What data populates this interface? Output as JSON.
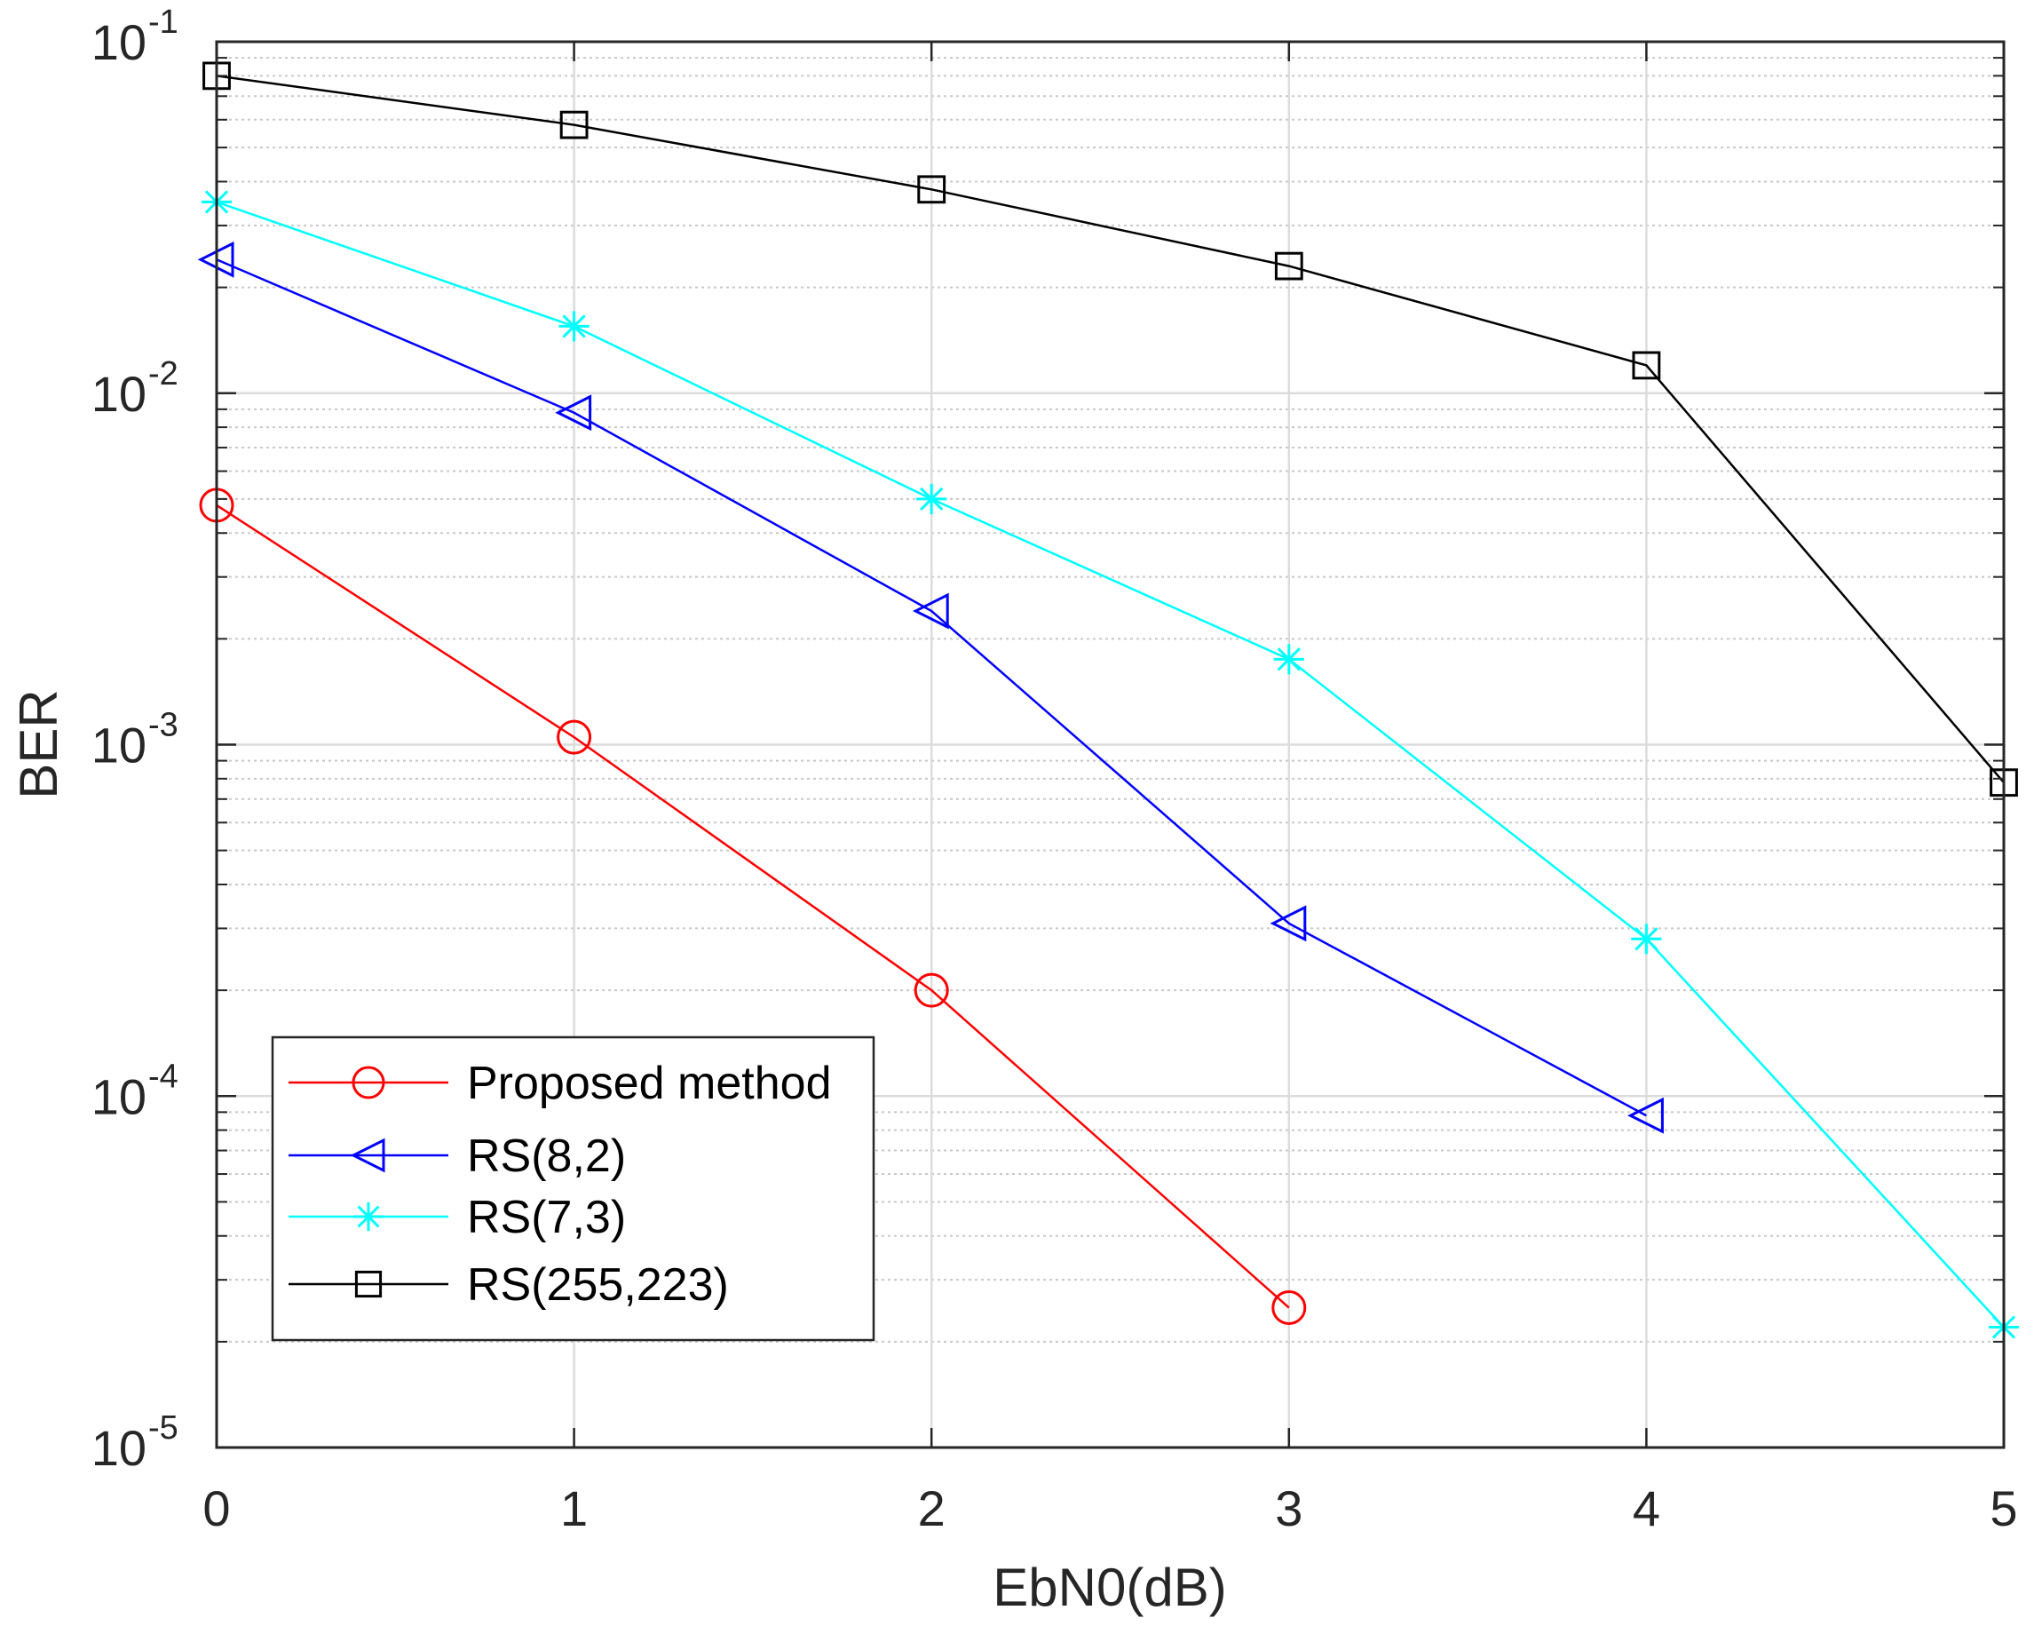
{
  "chart_data": {
    "type": "line",
    "title": "",
    "xlabel": "EbN0(dB)",
    "ylabel": "BER",
    "yscale": "log",
    "xlim": [
      0,
      5
    ],
    "ylim": [
      1e-05,
      0.1
    ],
    "xticks": [
      "0",
      "1",
      "2",
      "3",
      "4",
      "5"
    ],
    "yticks": [
      {
        "base": "10",
        "exp": "-5",
        "value": 1e-05
      },
      {
        "base": "10",
        "exp": "-4",
        "value": 0.0001
      },
      {
        "base": "10",
        "exp": "-3",
        "value": 0.001
      },
      {
        "base": "10",
        "exp": "-2",
        "value": 0.01
      },
      {
        "base": "10",
        "exp": "-1",
        "value": 0.1
      }
    ],
    "grid": true,
    "legend_position": "bottom-left",
    "series": [
      {
        "name": "Proposed method",
        "color": "#ff0000",
        "marker": "circle",
        "x": [
          0,
          1,
          2,
          3
        ],
        "values": [
          0.0048,
          0.00105,
          0.0002,
          2.5e-05
        ]
      },
      {
        "name": "RS(8,2)",
        "color": "#0000ff",
        "marker": "triangle-left",
        "x": [
          0,
          1,
          2,
          3,
          4
        ],
        "values": [
          0.024,
          0.0088,
          0.0024,
          0.00031,
          8.8e-05
        ]
      },
      {
        "name": "RS(7,3)",
        "color": "#00ffff",
        "marker": "asterisk",
        "x": [
          0,
          1,
          2,
          3,
          4,
          5
        ],
        "values": [
          0.035,
          0.0155,
          0.005,
          0.00175,
          0.00028,
          2.2e-05
        ]
      },
      {
        "name": "RS(255,223)",
        "color": "#000000",
        "marker": "square",
        "x": [
          0,
          1,
          2,
          3,
          4,
          5
        ],
        "values": [
          0.08,
          0.058,
          0.038,
          0.023,
          0.012,
          0.00078
        ]
      }
    ]
  }
}
